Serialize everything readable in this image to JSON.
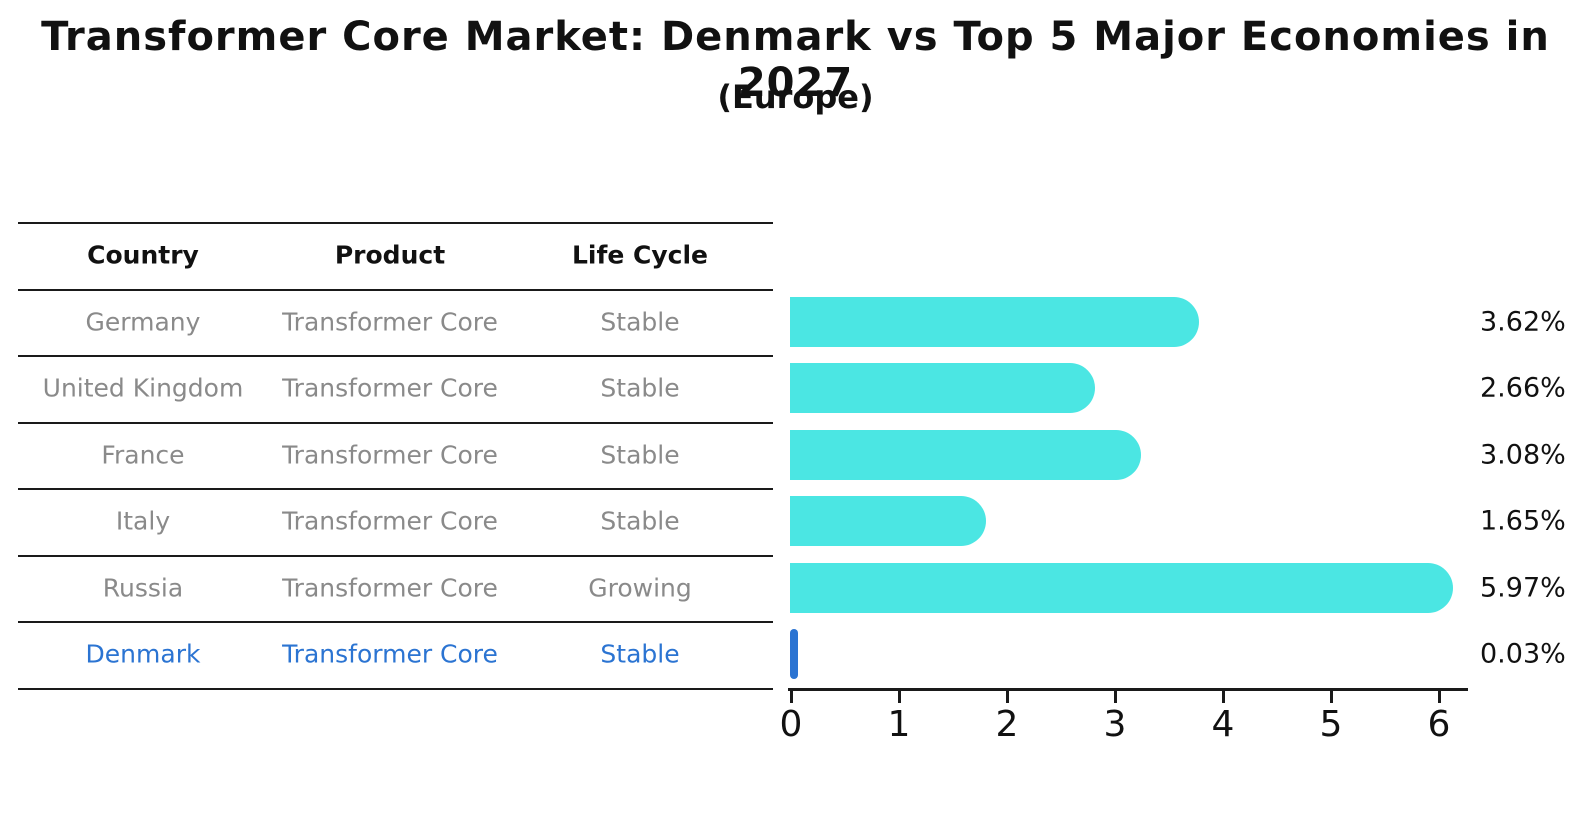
{
  "title": "Transformer Core Market: Denmark vs Top 5 Major Economies in 2027",
  "subtitle": "(Europe)",
  "table": {
    "columns": [
      "Country",
      "Product",
      "Life Cycle"
    ],
    "rows": [
      {
        "country": "Germany",
        "product": "Transformer Core",
        "life_cycle": "Stable",
        "highlighted": false
      },
      {
        "country": "United Kingdom",
        "product": "Transformer Core",
        "life_cycle": "Stable",
        "highlighted": false
      },
      {
        "country": "France",
        "product": "Transformer Core",
        "life_cycle": "Stable",
        "highlighted": false
      },
      {
        "country": "Italy",
        "product": "Transformer Core",
        "life_cycle": "Stable",
        "highlighted": false
      },
      {
        "country": "Russia",
        "product": "Transformer Core",
        "life_cycle": "Growing",
        "highlighted": false
      },
      {
        "country": "Denmark",
        "product": "Transformer Core",
        "life_cycle": "Stable",
        "highlighted": true
      }
    ]
  },
  "chart_data": {
    "type": "bar",
    "orientation": "horizontal",
    "categories": [
      "Germany",
      "United Kingdom",
      "France",
      "Italy",
      "Russia",
      "Denmark"
    ],
    "values": [
      3.62,
      2.66,
      3.08,
      1.65,
      5.97,
      0.03
    ],
    "value_labels": [
      "3.62%",
      "2.66%",
      "3.08%",
      "1.65%",
      "5.97%",
      "0.03%"
    ],
    "title": "Transformer Core Market: Denmark vs Top 5 Major Economies in 2027 (Europe)",
    "xlabel": "",
    "ylabel": "",
    "x_ticks": [
      0,
      1,
      2,
      3,
      4,
      5,
      6
    ],
    "xlim": [
      0,
      6.3
    ],
    "grid": false,
    "legend": false,
    "bar_color": "#4BE6E3",
    "highlight_color": "#2B74D2",
    "highlight_index": 5
  },
  "colors": {
    "bar_cyan": "#4BE6E3",
    "highlight_blue": "#2B74D2",
    "table_text_gray": "#8A8A8A",
    "text_black": "#111111"
  }
}
